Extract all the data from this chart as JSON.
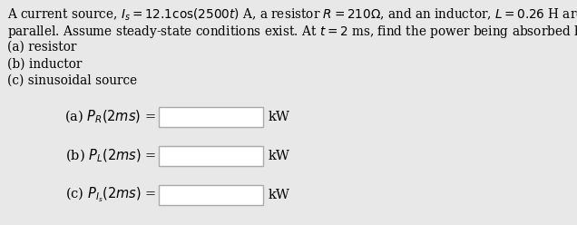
{
  "background_color": "#e8e8e8",
  "title_lines": [
    "A current source, $I_s = 12.1\\cos(2500t)$ A, a resistor $R = 210\\Omega$, and an inductor, $L = 0.26$ H are all in",
    "parallel. Assume steady-state conditions exist. At $t = 2$ ms, find the power being absorbed by the",
    "(a) resistor",
    "(b) inductor",
    "(c) sinusoidal source"
  ],
  "answer_labels": [
    "(a) $P_R(2ms)$ =",
    "(b) $P_L(2ms)$ =",
    "(c) $P_{I_s}(2ms)$ ="
  ],
  "unit": "kW",
  "font_size_body": 9.8,
  "font_size_answer": 10.5
}
